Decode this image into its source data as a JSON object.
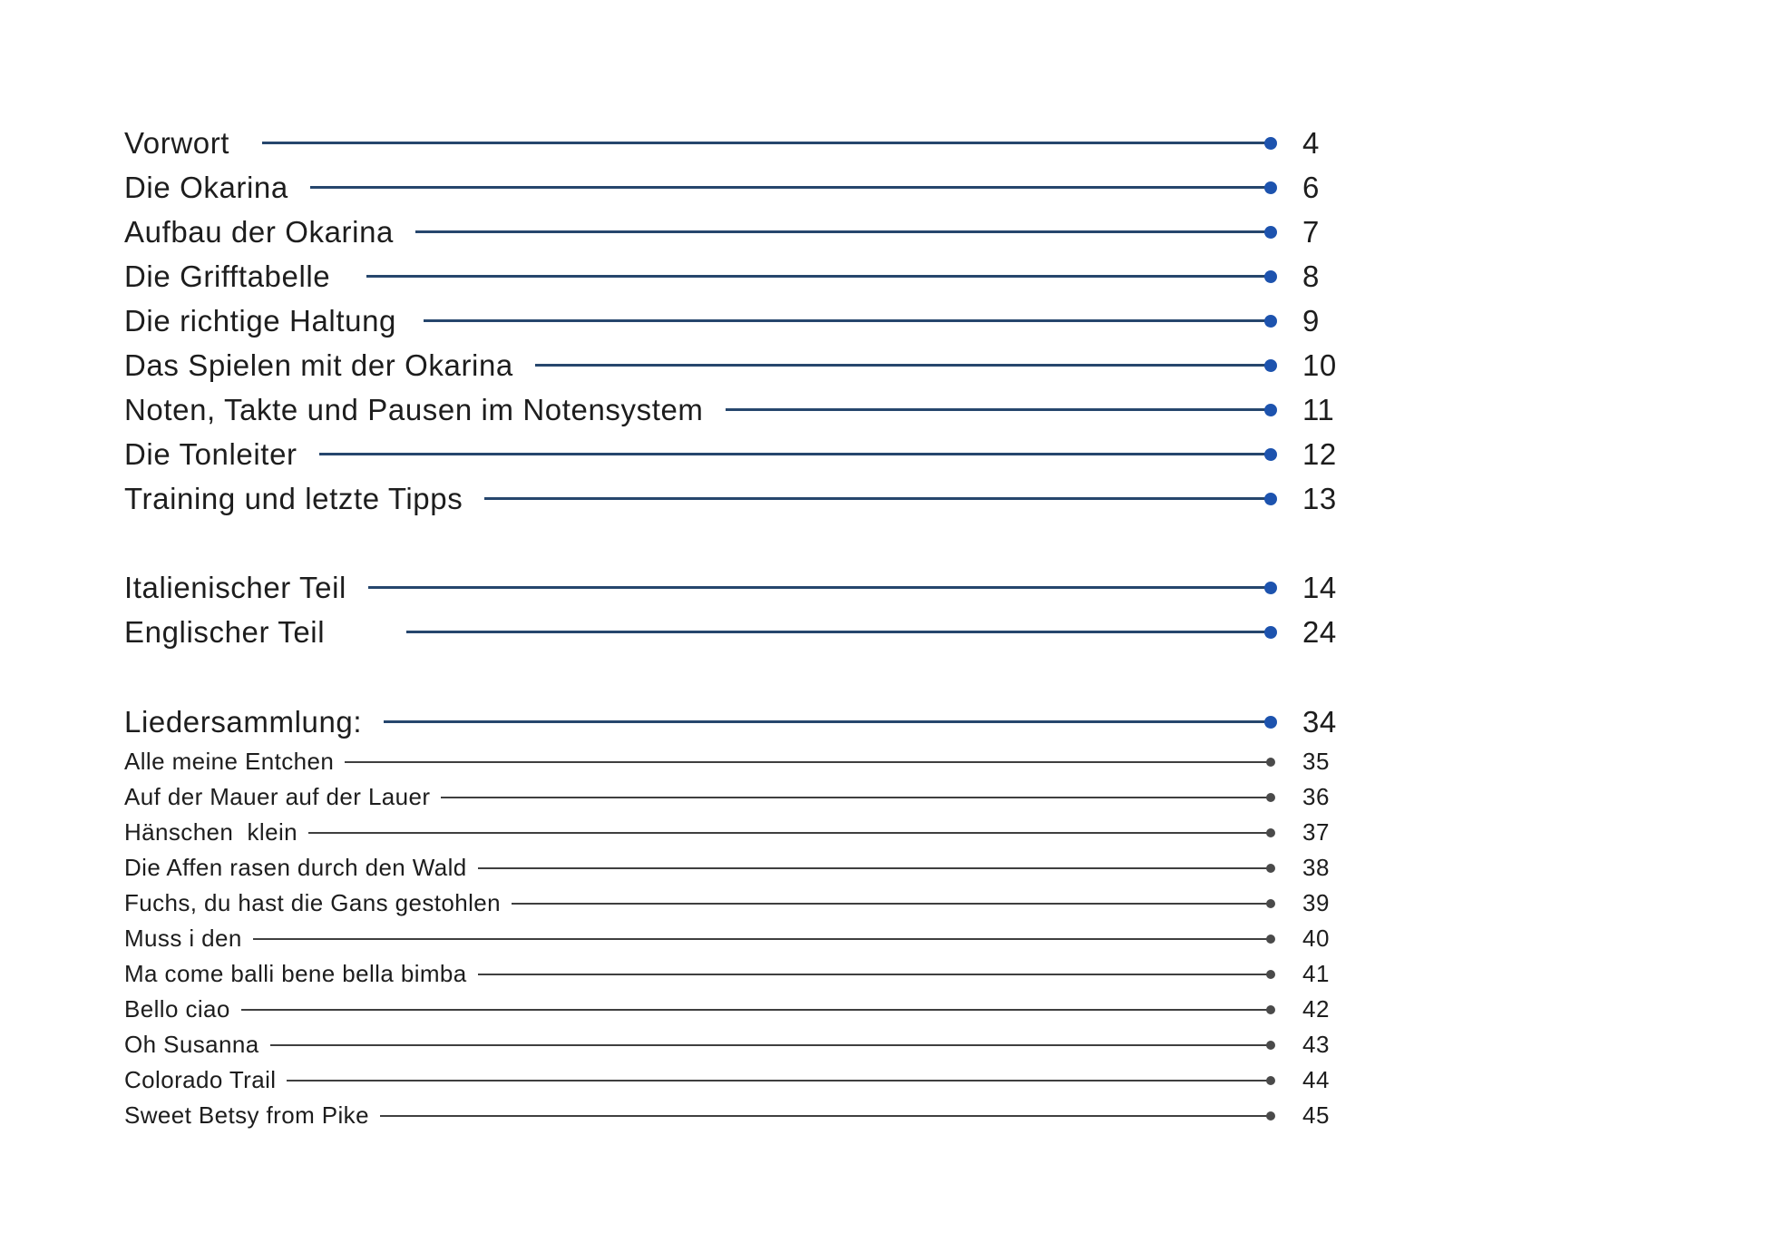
{
  "theme": {
    "page_background": "#ffffff",
    "text_color": "#1d1d1d",
    "main_line_color": "#26466d",
    "main_dot_color": "#1d53ae",
    "sub_line_color": "#3f3f3f",
    "sub_dot_color": "#4a4a4a"
  },
  "toc": {
    "groups": [
      {
        "items": [
          {
            "label": "Vorwort",
            "page": "4"
          },
          {
            "label": "Die Okarina",
            "page": "6"
          },
          {
            "label": "Aufbau der Okarina",
            "page": "7"
          },
          {
            "label": "Die Grifftabelle",
            "page": "8"
          },
          {
            "label": "Die richtige Haltung",
            "page": "9"
          },
          {
            "label": "Das Spielen mit der Okarina",
            "page": "10"
          },
          {
            "label": "Noten, Takte und Pausen im Notensystem",
            "page": "11"
          },
          {
            "label": "Die Tonleiter",
            "page": "12"
          },
          {
            "label": "Training und letzte Tipps",
            "page": "13"
          }
        ]
      },
      {
        "items": [
          {
            "label": "Italienischer Teil",
            "page": "14"
          },
          {
            "label": "Englischer Teil",
            "page": "24"
          }
        ]
      },
      {
        "items": [
          {
            "label": "Liedersammlung:",
            "page": "34"
          }
        ]
      },
      {
        "items": [
          {
            "label": "Alle meine Entchen",
            "page": "35"
          },
          {
            "label": "Auf der Mauer auf der Lauer",
            "page": "36"
          },
          {
            "label": "Hänschen  klein",
            "page": "37"
          },
          {
            "label": "Die Affen rasen durch den Wald",
            "page": "38"
          },
          {
            "label": "Fuchs, du hast die Gans gestohlen",
            "page": "39"
          },
          {
            "label": "Muss i den",
            "page": "40"
          },
          {
            "label": "Ma come balli bene bella bimba",
            "page": "41"
          },
          {
            "label": "Bello ciao",
            "page": "42"
          },
          {
            "label": "Oh Susanna",
            "page": "43"
          },
          {
            "label": "Colorado Trail",
            "page": "44"
          },
          {
            "label": "Sweet Betsy from Pike",
            "page": "45"
          }
        ]
      }
    ]
  }
}
